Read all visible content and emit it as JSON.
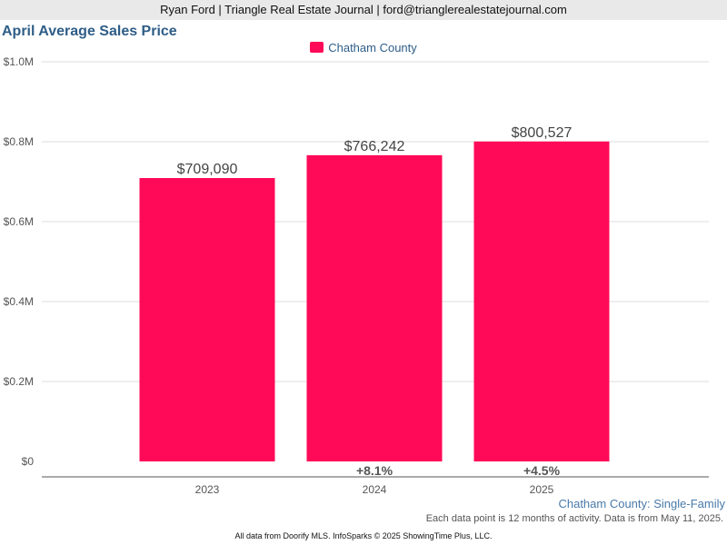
{
  "header": {
    "text": "Ryan Ford | Triangle Real Estate Journal | ford@trianglerealestatejournal.com"
  },
  "chart_data": {
    "type": "bar",
    "title": "April Average Sales Price",
    "categories": [
      "2023",
      "2024",
      "2025"
    ],
    "series": [
      {
        "name": "Chatham County",
        "values": [
          709090,
          766242,
          800527
        ],
        "value_labels": [
          "$709,090",
          "$766,242",
          "$800,527"
        ],
        "color": "#ff0a58"
      }
    ],
    "change_labels": [
      "",
      "+8.1%",
      "+4.5%"
    ],
    "ylim": [
      0,
      1000000
    ],
    "yticks": [
      0,
      200000,
      400000,
      600000,
      800000,
      1000000
    ],
    "ytick_labels": [
      "$0",
      "$0.2M",
      "$0.4M",
      "$0.6M",
      "$0.8M",
      "$1.0M"
    ],
    "grid": true,
    "legend_position": "top-center",
    "xlabel": "",
    "ylabel": ""
  },
  "subtitle": "Chatham County: Single-Family",
  "note": "Each data point is 12 months of activity. Data is from May 11, 2025.",
  "footer": "All data from Doorify MLS. InfoSparks © 2025 ShowingTime Plus, LLC."
}
